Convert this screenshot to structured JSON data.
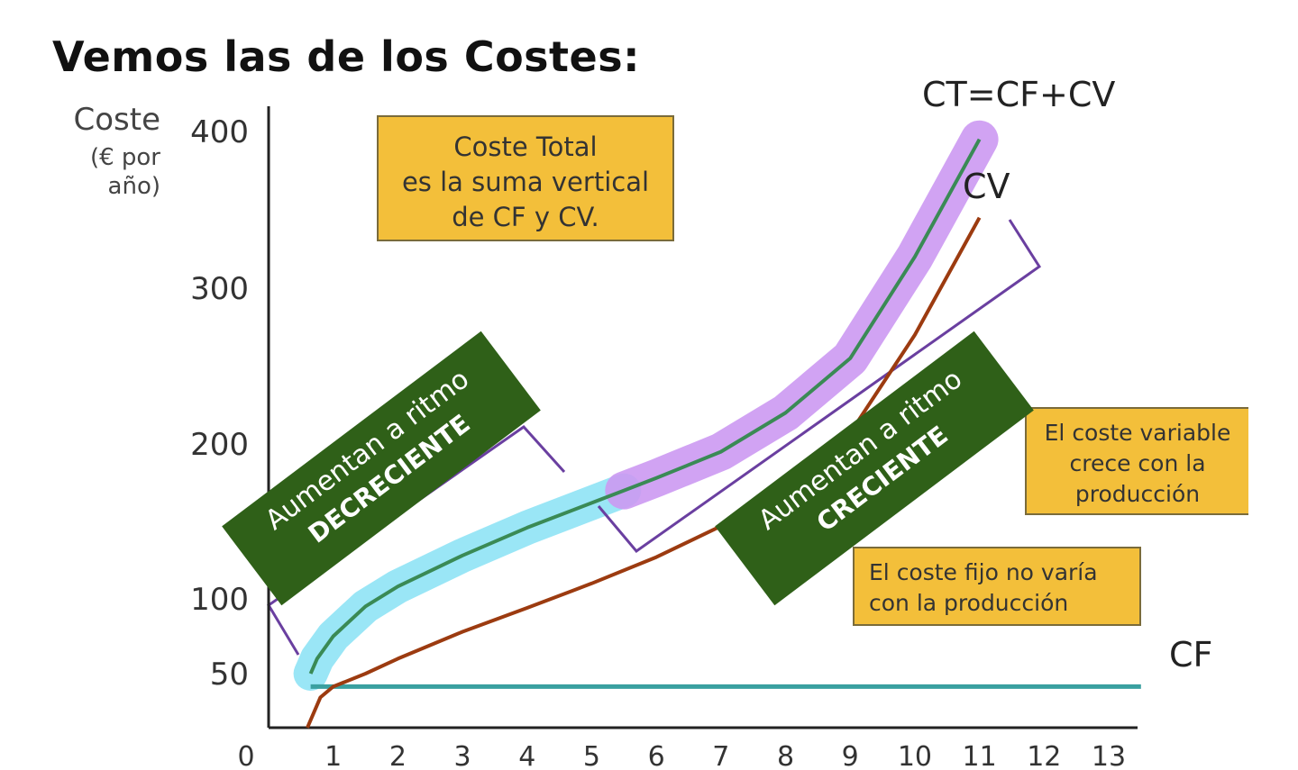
{
  "title": "Vemos las de los Costes:",
  "y_axis": {
    "label": "Coste",
    "unit_line1": "(€ por",
    "unit_line2": "año)"
  },
  "notes": {
    "total": [
      "Coste Total",
      "es la suma vertical",
      "de CF y CV."
    ],
    "variable": [
      "El coste variable",
      "crece con la",
      "producción"
    ],
    "fixed": [
      "El coste fijo no varía",
      "con la producción"
    ]
  },
  "banners": {
    "decreasing": [
      "Aumentan a ritmo",
      "DECRECIENTE"
    ],
    "increasing": [
      "Aumentan a ritmo",
      "CRECIENTE"
    ]
  },
  "colors": {
    "ct": "#3a8a55",
    "cv": "#9c3b10",
    "cf": "#3aa0a0",
    "highlight_decreasing": "#8fe3f5",
    "highlight_increasing": "#cc99f2",
    "bracket": "#6a3fa0"
  },
  "chart_data": {
    "type": "line",
    "xlabel": "",
    "ylabel": "Coste",
    "xlim": [
      0,
      13.5
    ],
    "ylim": [
      0,
      420
    ],
    "x_ticks": [
      0,
      1,
      2,
      3,
      4,
      5,
      6,
      7,
      8,
      9,
      10,
      11,
      12,
      13
    ],
    "y_ticks": [
      50,
      100,
      200,
      300,
      400
    ],
    "series": [
      {
        "name": "CT=CF+CV",
        "key": "ct",
        "x": [
          0.65,
          0.75,
          1,
          1.5,
          2,
          3,
          4,
          5,
          5.5,
          6,
          7,
          8,
          9,
          10,
          11
        ],
        "y": [
          50,
          60,
          75,
          95,
          108,
          128,
          146,
          162,
          170,
          178,
          195,
          220,
          255,
          320,
          395
        ]
      },
      {
        "name": "CV",
        "key": "cv",
        "x": [
          0.6,
          0.8,
          1,
          1.5,
          2,
          3,
          4,
          5,
          6,
          7,
          8,
          9,
          10,
          11
        ],
        "y": [
          0,
          28,
          38,
          50,
          60,
          78,
          94,
          110,
          127,
          147,
          172,
          207,
          270,
          345
        ]
      },
      {
        "name": "CF",
        "key": "cf",
        "x": [
          0.65,
          13.5
        ],
        "y": [
          38,
          38
        ]
      }
    ]
  }
}
